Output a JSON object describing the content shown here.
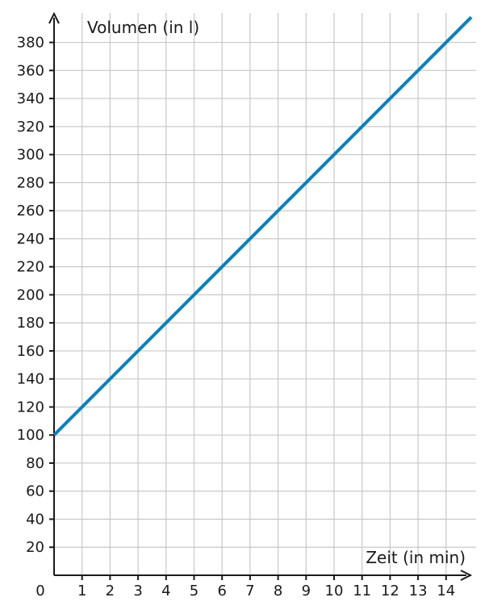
{
  "chart_data": {
    "type": "line",
    "title": "",
    "xlabel": "Zeit (in min)",
    "ylabel": "Volumen (in l)",
    "origin_label": "0",
    "x_ticks": [
      1,
      2,
      3,
      4,
      5,
      6,
      7,
      8,
      9,
      10,
      11,
      12,
      13,
      14
    ],
    "y_ticks": [
      20,
      40,
      60,
      80,
      100,
      120,
      140,
      160,
      180,
      200,
      220,
      240,
      260,
      280,
      300,
      320,
      340,
      360,
      380
    ],
    "xlim": [
      0,
      14.9
    ],
    "ylim": [
      0,
      398
    ],
    "grid": true,
    "series": [
      {
        "x": [
          0,
          14.9
        ],
        "y": [
          100,
          398
        ],
        "color": "#0a80bd"
      }
    ]
  }
}
